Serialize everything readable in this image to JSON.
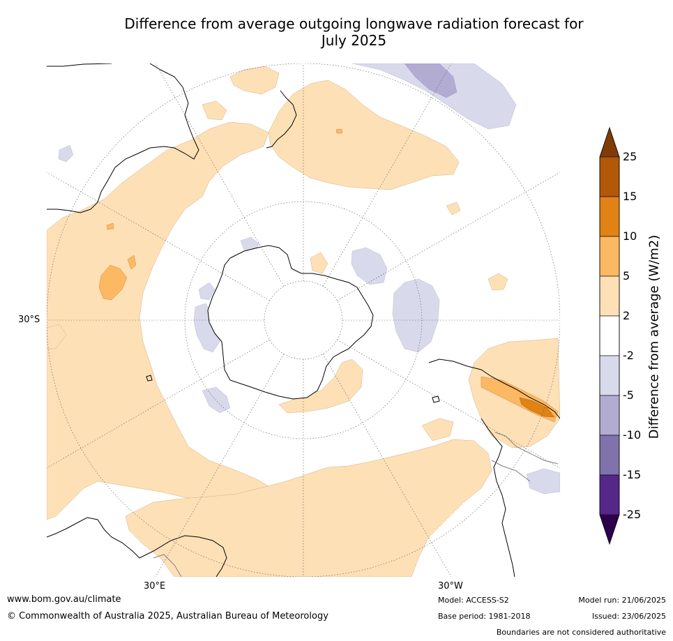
{
  "title": {
    "line1": "Difference from average outgoing longwave radiation forecast for",
    "line2": "July 2025"
  },
  "map": {
    "projection": "south-polar-stereographic",
    "lat_labels": {
      "west": "30°S",
      "e": "30°E",
      "w": "30°W"
    },
    "colors": {
      "land_outline": "#000000",
      "border_outline": "#808080",
      "grid": "#555555"
    }
  },
  "colorbar": {
    "title": "Difference from average (W/m2)",
    "labels": [
      "25",
      "15",
      "10",
      "5",
      "2",
      "-2",
      "-5",
      "-10",
      "-15",
      "-25"
    ],
    "bins": [
      {
        "range": ">25",
        "color": "#7f3b08"
      },
      {
        "range": "15 to 25",
        "color": "#b35806"
      },
      {
        "range": "10 to 15",
        "color": "#e08214"
      },
      {
        "range": "5 to 10",
        "color": "#fdb863"
      },
      {
        "range": "2 to 5",
        "color": "#fee0b6"
      },
      {
        "range": "-2 to 2",
        "color": "#ffffff"
      },
      {
        "range": "-5 to -2",
        "color": "#d8daeb"
      },
      {
        "range": "-10 to -5",
        "color": "#b2abd2"
      },
      {
        "range": "-15 to -10",
        "color": "#8073ac"
      },
      {
        "range": "-25 to -15",
        "color": "#542788"
      },
      {
        "range": "<-25",
        "color": "#2d004b"
      }
    ]
  },
  "footer": {
    "url": "www.bom.gov.au/climate",
    "copyright": "© Commonwealth of Australia 2025, Australian Bureau of Meteorology",
    "model": "Model: ACCESS-S2",
    "base_period": "Base period: 1981-2018",
    "model_run": "Model run: 21/06/2025",
    "issued": "Issued: 23/06/2025",
    "disclaimer": "Boundaries are not considered authoritative"
  }
}
